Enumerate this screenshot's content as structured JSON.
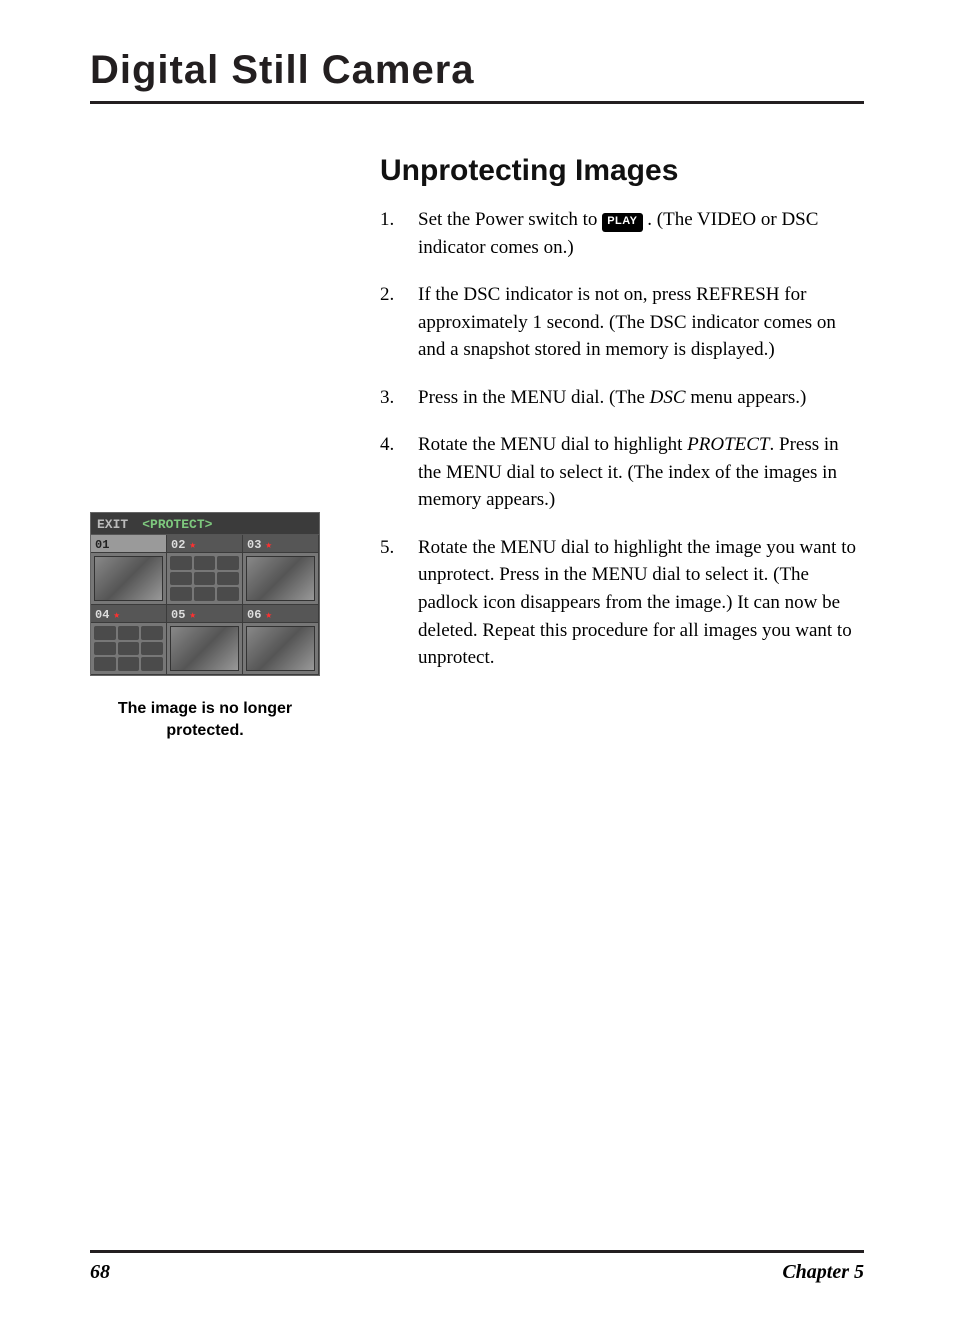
{
  "chapter_title": "Digital Still Camera",
  "section_heading": "Unprotecting Images",
  "steps": [
    {
      "num": "1.",
      "pre": "Set the Power switch to ",
      "badge": "PLAY",
      "post": ". (The VIDEO or DSC indicator comes on.)"
    },
    {
      "num": "2.",
      "text": "If the DSC indicator is not on, press REFRESH for approximately 1 second. (The DSC indicator comes on and a snapshot stored in memory is displayed.)"
    },
    {
      "num": "3.",
      "pre": "Press in the MENU dial. (The ",
      "ital": "DSC",
      "post": " menu appears.)"
    },
    {
      "num": "4.",
      "pre": "Rotate the MENU dial to highlight ",
      "ital": "PROTECT",
      "post": ". Press in the MENU dial to select it. (The index of the images in memory appears.)"
    },
    {
      "num": "5.",
      "text": "Rotate the MENU dial to highlight the image you want to unprotect. Press in the MENU dial to select it. (The padlock icon disappears from the image.) It can now be deleted. Repeat this procedure for all images you want to unprotect."
    }
  ],
  "protect_screen": {
    "exit": "EXIT",
    "title": "<PROTECT>",
    "cells": [
      {
        "label": "01",
        "star": false,
        "selected": true
      },
      {
        "label": "02",
        "star": true,
        "selected": false
      },
      {
        "label": "03",
        "star": true,
        "selected": false
      },
      {
        "label": "04",
        "star": true,
        "selected": false
      },
      {
        "label": "05",
        "star": true,
        "selected": false
      },
      {
        "label": "06",
        "star": true,
        "selected": false
      }
    ],
    "star_glyph": "★"
  },
  "caption_line1": "The image is no longer",
  "caption_line2": "protected.",
  "footer": {
    "page": "68",
    "chapter": "Chapter 5"
  },
  "colors": {
    "text": "#000000",
    "rule": "#231f20",
    "screen_bg": "#3b3b3b",
    "protect_green": "#7ec97e",
    "star_red": "#ff3030"
  }
}
